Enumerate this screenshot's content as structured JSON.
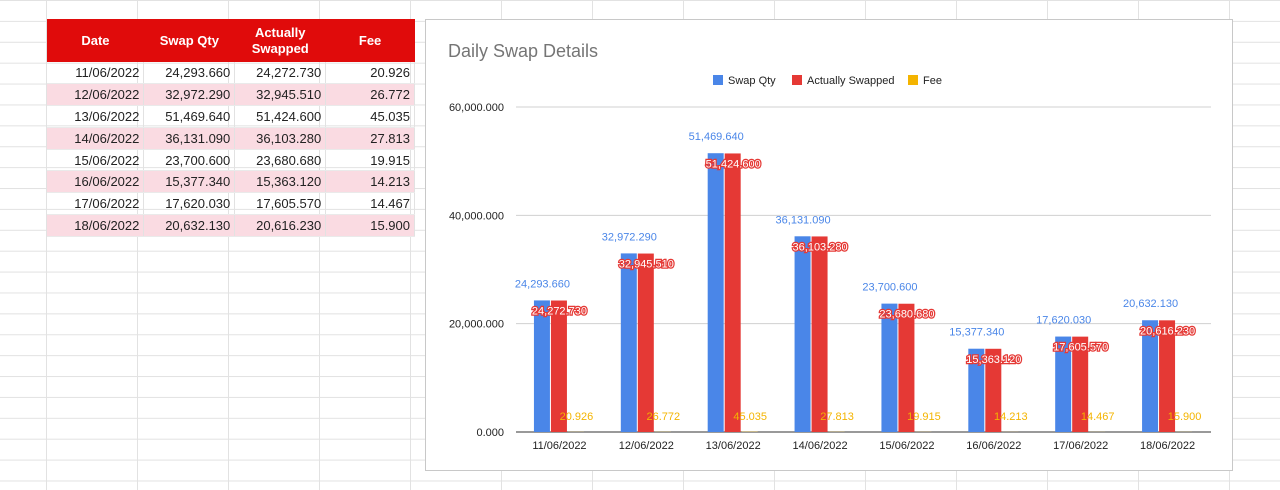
{
  "table": {
    "headers": [
      "Date",
      "Swap Qty",
      "Actually Swapped",
      "Fee"
    ],
    "rows": [
      [
        "11/06/2022",
        "24,293.660",
        "24,272.730",
        "20.926"
      ],
      [
        "12/06/2022",
        "32,972.290",
        "32,945.510",
        "26.772"
      ],
      [
        "13/06/2022",
        "51,469.640",
        "51,424.600",
        "45.035"
      ],
      [
        "14/06/2022",
        "36,131.090",
        "36,103.280",
        "27.813"
      ],
      [
        "15/06/2022",
        "23,700.600",
        "23,680.680",
        "19.915"
      ],
      [
        "16/06/2022",
        "15,377.340",
        "15,363.120",
        "14.213"
      ],
      [
        "17/06/2022",
        "17,620.030",
        "17,605.570",
        "14.467"
      ],
      [
        "18/06/2022",
        "20,632.130",
        "20,616.230",
        "15.900"
      ]
    ]
  },
  "chart_data": {
    "type": "bar",
    "title": "Daily Swap Details",
    "xlabel": "",
    "ylabel": "",
    "categories": [
      "11/06/2022",
      "12/06/2022",
      "13/06/2022",
      "14/06/2022",
      "15/06/2022",
      "16/06/2022",
      "17/06/2022",
      "18/06/2022"
    ],
    "series": [
      {
        "name": "Swap Qty",
        "color": "#4a86e8",
        "values": [
          24293.66,
          32972.29,
          51469.64,
          36131.09,
          23700.6,
          15377.34,
          17620.03,
          20632.13
        ],
        "labels": [
          "24,293.660",
          "32,972.290",
          "51,469.640",
          "36,131.090",
          "23,700.600",
          "15,377.340",
          "17,620.030",
          "20,632.130"
        ]
      },
      {
        "name": "Actually Swapped",
        "color": "#e53935",
        "values": [
          24272.73,
          32945.51,
          51424.6,
          36103.28,
          23680.68,
          15363.12,
          17605.57,
          20616.23
        ],
        "labels": [
          "24,272.730",
          "32,945.510",
          "51,424.600",
          "36,103.280",
          "23,680.680",
          "15,363.120",
          "17,605.570",
          "20,616.230"
        ]
      },
      {
        "name": "Fee",
        "color": "#f4b400",
        "values": [
          20.926,
          26.772,
          45.035,
          27.813,
          19.915,
          14.213,
          14.467,
          15.9
        ],
        "labels": [
          "20.926",
          "26.772",
          "45.035",
          "27.813",
          "19.915",
          "14.213",
          "14.467",
          "15.900"
        ]
      }
    ],
    "yticks": [
      "0.000",
      "20,000.000",
      "40,000.000",
      "60,000.000"
    ],
    "ylim": [
      0,
      60000
    ],
    "legend": "top",
    "grid": true
  }
}
